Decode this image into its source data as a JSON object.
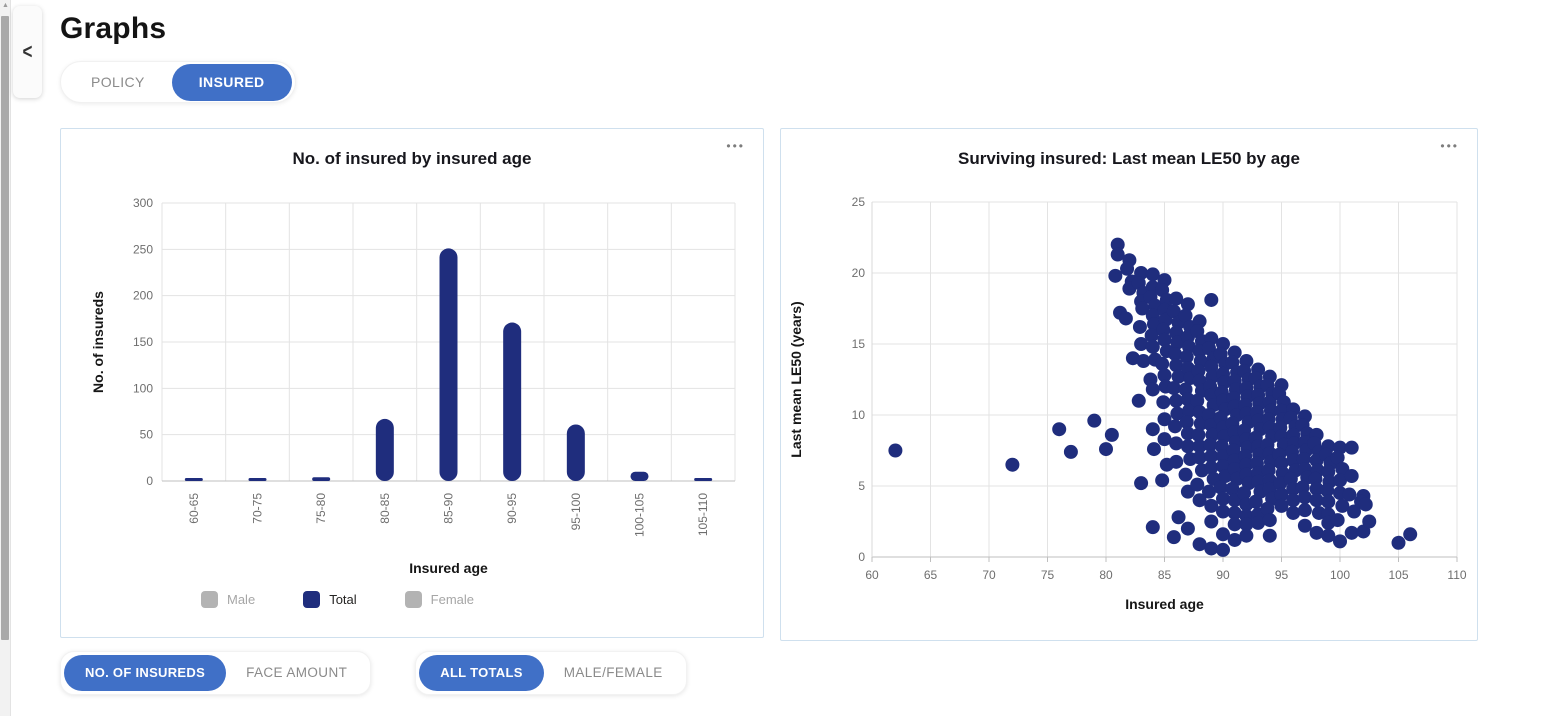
{
  "header": {
    "title": "Graphs"
  },
  "icons": {
    "collapse": "<",
    "more_options": "•••",
    "scroll_up": "▲"
  },
  "colors": {
    "accent_blue": "#4070C7",
    "navy": "#1F2D7D",
    "grid": "#E3E3E3",
    "card_border": "#CFE0EE",
    "tick_text": "#6E6E6E",
    "disabled_text": "#A6A6A6",
    "axis_line": "#BFBFBF"
  },
  "tabs": [
    {
      "label": "POLICY",
      "active": false
    },
    {
      "label": "INSURED",
      "active": true
    }
  ],
  "bottom_toggles": [
    {
      "options": [
        {
          "label": "NO. OF INSUREDS",
          "active": true
        },
        {
          "label": "FACE AMOUNT",
          "active": false
        }
      ]
    },
    {
      "options": [
        {
          "label": "ALL TOTALS",
          "active": true
        },
        {
          "label": "MALE/FEMALE",
          "active": false
        }
      ]
    }
  ],
  "chart_data": [
    {
      "type": "bar",
      "title": "No. of insured by insured age",
      "categories": [
        "60-65",
        "70-75",
        "75-80",
        "80-85",
        "85-90",
        "90-95",
        "95-100",
        "100-105",
        "105-110"
      ],
      "values": [
        2,
        2,
        4,
        67,
        251,
        171,
        61,
        10,
        2
      ],
      "xlabel": "Insured age",
      "ylabel": "No. of insureds",
      "ylim": [
        0,
        300
      ],
      "yticks": [
        0,
        50,
        100,
        150,
        200,
        250,
        300
      ],
      "grid": true,
      "legend_position": "bottom",
      "legend": [
        {
          "label": "Male",
          "color": "#B3B3B3",
          "active": false
        },
        {
          "label": "Total",
          "color": "#1F2D7D",
          "active": true
        },
        {
          "label": "Female",
          "color": "#B3B3B3",
          "active": false
        }
      ]
    },
    {
      "type": "scatter",
      "title": "Surviving insured: Last mean LE50 by age",
      "xlabel": "Insured age",
      "ylabel": "Last mean LE50 (years)",
      "xlim": [
        60,
        110
      ],
      "ylim": [
        0,
        25
      ],
      "xticks": [
        60,
        65,
        70,
        75,
        80,
        85,
        90,
        95,
        100,
        105,
        110
      ],
      "yticks": [
        0,
        5,
        10,
        15,
        20,
        25
      ],
      "grid": true,
      "points": [
        [
          62,
          7.5
        ],
        [
          72,
          6.5
        ],
        [
          76,
          9
        ],
        [
          77,
          7.4
        ],
        [
          79,
          9.6
        ],
        [
          80,
          7.6
        ],
        [
          80.5,
          8.6
        ],
        [
          81,
          22
        ],
        [
          81,
          21.3
        ],
        [
          80.8,
          19.8
        ],
        [
          81.2,
          17.2
        ],
        [
          82,
          20.9
        ],
        [
          81.8,
          20.3
        ],
        [
          82.2,
          19.4
        ],
        [
          82,
          18.9
        ],
        [
          81.7,
          16.8
        ],
        [
          82.3,
          14
        ],
        [
          83,
          20
        ],
        [
          82.8,
          19.3
        ],
        [
          83.2,
          18.6
        ],
        [
          83,
          18
        ],
        [
          83.1,
          17.5
        ],
        [
          82.9,
          16.2
        ],
        [
          83,
          15
        ],
        [
          83.2,
          13.8
        ],
        [
          82.8,
          11
        ],
        [
          83,
          5.2
        ],
        [
          84,
          19.9
        ],
        [
          84,
          19
        ],
        [
          83.8,
          18.3
        ],
        [
          84.2,
          17.7
        ],
        [
          84,
          17
        ],
        [
          84.1,
          16.4
        ],
        [
          83.9,
          15.6
        ],
        [
          84,
          14.8
        ],
        [
          84.2,
          13.9
        ],
        [
          83.8,
          12.5
        ],
        [
          84,
          11.8
        ],
        [
          84,
          9
        ],
        [
          84.1,
          7.6
        ],
        [
          84,
          2.1
        ],
        [
          85,
          19.5
        ],
        [
          84.8,
          18.8
        ],
        [
          85.2,
          18.1
        ],
        [
          85,
          17.4
        ],
        [
          85.1,
          16.7
        ],
        [
          84.9,
          16
        ],
        [
          85,
          15.3
        ],
        [
          85.2,
          14.5
        ],
        [
          84.8,
          13.6
        ],
        [
          85,
          12.8
        ],
        [
          85.1,
          12
        ],
        [
          84.9,
          10.9
        ],
        [
          85,
          9.7
        ],
        [
          85,
          8.3
        ],
        [
          85.2,
          6.5
        ],
        [
          84.8,
          5.4
        ],
        [
          86,
          18.2
        ],
        [
          85.8,
          17.3
        ],
        [
          86.2,
          16.5
        ],
        [
          86,
          15.8
        ],
        [
          86.1,
          15.1
        ],
        [
          85.9,
          14.3
        ],
        [
          86,
          13.5
        ],
        [
          86.2,
          12.7
        ],
        [
          85.8,
          11.9
        ],
        [
          86,
          11
        ],
        [
          86.1,
          10.1
        ],
        [
          85.9,
          9.2
        ],
        [
          86,
          8
        ],
        [
          86,
          6.7
        ],
        [
          86.2,
          2.8
        ],
        [
          85.8,
          1.4
        ],
        [
          87,
          17.8
        ],
        [
          86.8,
          17
        ],
        [
          87.2,
          16.2
        ],
        [
          87,
          15.5
        ],
        [
          87.1,
          14.8
        ],
        [
          86.9,
          14.1
        ],
        [
          87,
          13.3
        ],
        [
          87.2,
          12.6
        ],
        [
          86.8,
          11.8
        ],
        [
          87,
          11.1
        ],
        [
          87.1,
          10.3
        ],
        [
          86.9,
          9.5
        ],
        [
          87,
          8.7
        ],
        [
          87,
          7.8
        ],
        [
          87.2,
          6.9
        ],
        [
          86.8,
          5.8
        ],
        [
          87,
          4.6
        ],
        [
          87,
          2
        ],
        [
          88,
          16.6
        ],
        [
          87.8,
          15.9
        ],
        [
          88.2,
          15.2
        ],
        [
          88,
          14.5
        ],
        [
          88.1,
          13.8
        ],
        [
          87.9,
          13.1
        ],
        [
          88,
          12.4
        ],
        [
          88.2,
          11.7
        ],
        [
          87.8,
          11
        ],
        [
          88,
          10.2
        ],
        [
          88.1,
          9.4
        ],
        [
          87.9,
          8.6
        ],
        [
          88,
          7.8
        ],
        [
          88,
          7
        ],
        [
          88.2,
          6.1
        ],
        [
          87.8,
          5.1
        ],
        [
          88,
          4
        ],
        [
          88,
          0.9
        ],
        [
          89,
          18.1
        ],
        [
          89,
          15.4
        ],
        [
          88.8,
          14.7
        ],
        [
          89.2,
          14
        ],
        [
          89,
          13.4
        ],
        [
          89.1,
          12.7
        ],
        [
          88.9,
          12
        ],
        [
          89,
          11.4
        ],
        [
          89.2,
          10.7
        ],
        [
          88.8,
          10
        ],
        [
          89,
          9.3
        ],
        [
          89.1,
          8.6
        ],
        [
          88.9,
          7.9
        ],
        [
          89,
          7.1
        ],
        [
          89,
          6.3
        ],
        [
          89.2,
          5.5
        ],
        [
          88.8,
          4.6
        ],
        [
          89,
          3.6
        ],
        [
          89,
          2.5
        ],
        [
          89,
          0.6
        ],
        [
          90,
          15
        ],
        [
          89.8,
          14.3
        ],
        [
          90.2,
          13.6
        ],
        [
          90,
          12.9
        ],
        [
          90.1,
          12.3
        ],
        [
          89.9,
          11.6
        ],
        [
          90,
          11
        ],
        [
          90.2,
          10.4
        ],
        [
          89.8,
          9.8
        ],
        [
          90,
          9.1
        ],
        [
          90.1,
          8.5
        ],
        [
          89.9,
          7.8
        ],
        [
          90,
          7.1
        ],
        [
          90,
          6.4
        ],
        [
          90.2,
          5.7
        ],
        [
          89.8,
          4.9
        ],
        [
          90,
          4.1
        ],
        [
          90,
          3.2
        ],
        [
          90,
          1.6
        ],
        [
          90,
          0.5
        ],
        [
          91,
          14.4
        ],
        [
          90.8,
          13.7
        ],
        [
          91.2,
          13
        ],
        [
          91,
          12.4
        ],
        [
          91.1,
          11.8
        ],
        [
          90.9,
          11.2
        ],
        [
          91,
          10.6
        ],
        [
          91.2,
          10
        ],
        [
          90.8,
          9.4
        ],
        [
          91,
          8.8
        ],
        [
          91.1,
          8.1
        ],
        [
          90.9,
          7.5
        ],
        [
          91,
          6.8
        ],
        [
          91,
          6.2
        ],
        [
          91.2,
          5.5
        ],
        [
          90.8,
          4.8
        ],
        [
          91,
          4
        ],
        [
          91,
          3.1
        ],
        [
          91,
          2.3
        ],
        [
          91,
          1.2
        ],
        [
          92,
          13.8
        ],
        [
          91.8,
          13.1
        ],
        [
          92.2,
          12.5
        ],
        [
          92,
          11.9
        ],
        [
          92.1,
          11.3
        ],
        [
          91.9,
          10.7
        ],
        [
          92,
          10.1
        ],
        [
          92.2,
          9.5
        ],
        [
          91.8,
          8.9
        ],
        [
          92,
          8.3
        ],
        [
          92.1,
          7.7
        ],
        [
          91.9,
          7.1
        ],
        [
          92,
          6.5
        ],
        [
          92,
          5.8
        ],
        [
          92.2,
          5.2
        ],
        [
          91.8,
          4.5
        ],
        [
          92,
          3.7
        ],
        [
          92,
          2.9
        ],
        [
          92,
          2.3
        ],
        [
          92,
          1.5
        ],
        [
          93,
          13.2
        ],
        [
          92.8,
          12.6
        ],
        [
          93.2,
          12
        ],
        [
          93,
          11.4
        ],
        [
          93.1,
          10.8
        ],
        [
          92.9,
          10.2
        ],
        [
          93,
          9.6
        ],
        [
          93.2,
          9
        ],
        [
          92.8,
          8.4
        ],
        [
          93,
          7.8
        ],
        [
          93.1,
          7.2
        ],
        [
          92.9,
          6.6
        ],
        [
          93,
          5.9
        ],
        [
          93,
          5.3
        ],
        [
          93.2,
          4.6
        ],
        [
          92.8,
          3.9
        ],
        [
          93,
          3
        ],
        [
          93,
          2.4
        ],
        [
          94,
          12.7
        ],
        [
          93.8,
          12.1
        ],
        [
          94.2,
          11.5
        ],
        [
          94,
          10.9
        ],
        [
          94.1,
          10.3
        ],
        [
          93.9,
          9.7
        ],
        [
          94,
          9.1
        ],
        [
          94.2,
          8.5
        ],
        [
          93.8,
          7.9
        ],
        [
          94,
          7.3
        ],
        [
          94.1,
          6.7
        ],
        [
          93.9,
          6.1
        ],
        [
          94,
          5.4
        ],
        [
          94,
          4.8
        ],
        [
          94.2,
          4.1
        ],
        [
          93.8,
          3.4
        ],
        [
          94,
          2.6
        ],
        [
          94,
          1.5
        ],
        [
          95,
          12.1
        ],
        [
          94.8,
          11.5
        ],
        [
          95.2,
          10.9
        ],
        [
          95,
          10.3
        ],
        [
          95.1,
          9.7
        ],
        [
          94.9,
          9.1
        ],
        [
          95,
          8.5
        ],
        [
          95.2,
          7.9
        ],
        [
          94.8,
          7.2
        ],
        [
          95,
          6.6
        ],
        [
          95.1,
          5.9
        ],
        [
          94.9,
          5.2
        ],
        [
          95,
          4.4
        ],
        [
          95,
          3.6
        ],
        [
          96,
          10.4
        ],
        [
          95.8,
          9.8
        ],
        [
          96.2,
          9.2
        ],
        [
          96,
          8.6
        ],
        [
          96.1,
          8
        ],
        [
          95.9,
          7.4
        ],
        [
          96,
          6.8
        ],
        [
          96.2,
          6.1
        ],
        [
          95.8,
          5.5
        ],
        [
          96,
          4.8
        ],
        [
          96,
          4
        ],
        [
          96,
          3.1
        ],
        [
          97,
          9.9
        ],
        [
          96.8,
          9.3
        ],
        [
          97.2,
          8.7
        ],
        [
          97,
          8.1
        ],
        [
          97.1,
          7.5
        ],
        [
          96.9,
          6.9
        ],
        [
          97,
          6.2
        ],
        [
          97.2,
          5.6
        ],
        [
          96.8,
          4.9
        ],
        [
          97,
          4.2
        ],
        [
          97,
          3.3
        ],
        [
          97,
          2.2
        ],
        [
          98,
          8.6
        ],
        [
          97.8,
          8
        ],
        [
          98.2,
          7.4
        ],
        [
          98,
          6.8
        ],
        [
          98.1,
          6.1
        ],
        [
          97.9,
          5.5
        ],
        [
          98,
          4.8
        ],
        [
          98,
          4
        ],
        [
          98.2,
          3.1
        ],
        [
          98,
          1.7
        ],
        [
          99,
          7.8
        ],
        [
          98.8,
          7.2
        ],
        [
          99.2,
          6.6
        ],
        [
          99,
          6
        ],
        [
          99.1,
          5.3
        ],
        [
          98.9,
          4.7
        ],
        [
          99,
          3.9
        ],
        [
          99,
          3
        ],
        [
          99,
          2.4
        ],
        [
          99,
          1.5
        ],
        [
          100,
          7.7
        ],
        [
          99.8,
          7
        ],
        [
          100.2,
          6.2
        ],
        [
          100,
          5.4
        ],
        [
          100,
          4.5
        ],
        [
          100.2,
          3.6
        ],
        [
          99.8,
          2.6
        ],
        [
          100,
          1.1
        ],
        [
          101,
          7.7
        ],
        [
          101,
          5.7
        ],
        [
          100.8,
          4.4
        ],
        [
          101.2,
          3.2
        ],
        [
          101,
          1.7
        ],
        [
          102,
          4.3
        ],
        [
          101.8,
          3.9
        ],
        [
          102.2,
          3.7
        ],
        [
          102,
          1.8
        ],
        [
          102.5,
          2.5
        ],
        [
          105,
          1
        ],
        [
          106,
          1.6
        ]
      ]
    }
  ]
}
